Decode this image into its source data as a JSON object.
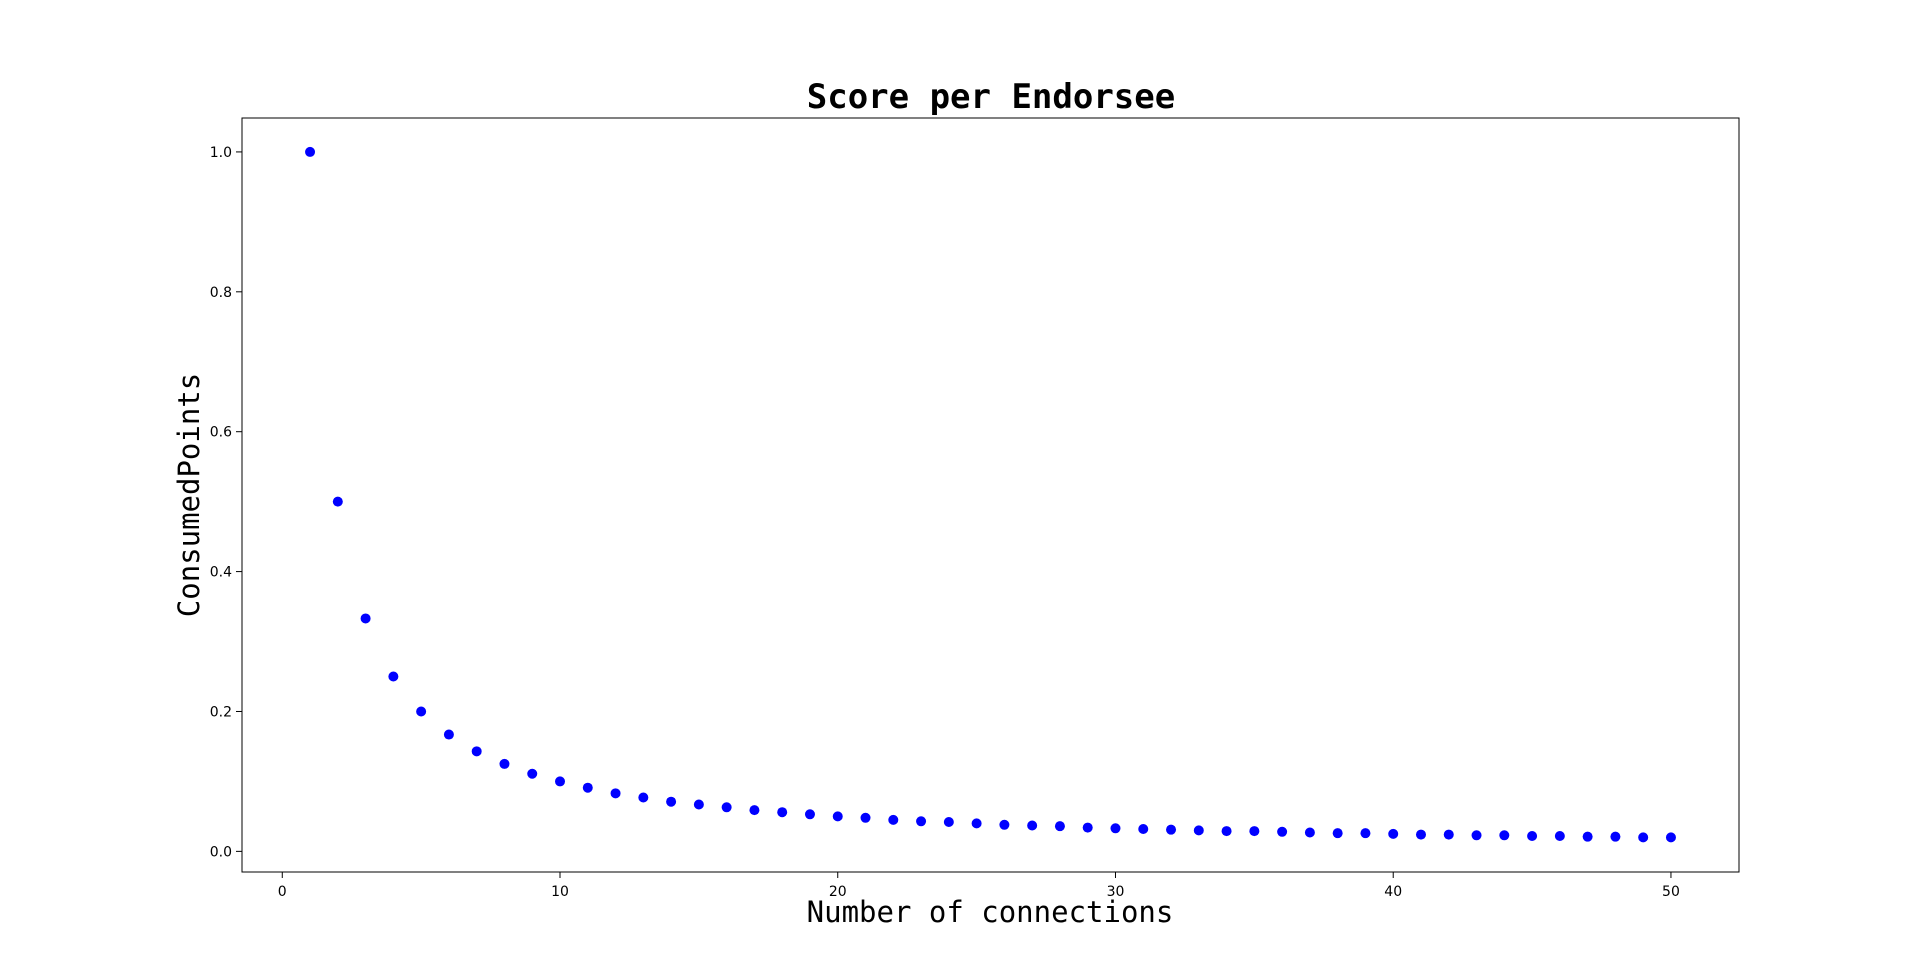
{
  "chart_data": {
    "type": "scatter",
    "title": "Score per Endorsee",
    "xlabel": "Number of connections",
    "ylabel": "ConsumedPoints",
    "xlim": [
      -1.45,
      52.45
    ],
    "ylim": [
      -0.0295,
      1.0485
    ],
    "xticks": [
      0,
      10,
      20,
      30,
      40,
      50
    ],
    "xtick_labels": [
      "0",
      "10",
      "20",
      "30",
      "40",
      "50"
    ],
    "yticks": [
      0.0,
      0.2,
      0.4,
      0.6,
      0.8,
      1.0
    ],
    "ytick_labels": [
      "0.0",
      "0.2",
      "0.4",
      "0.6",
      "0.8",
      "1.0"
    ],
    "grid": false,
    "marker_color": "#0000ff",
    "series": [
      {
        "x": [
          1,
          2,
          3,
          4,
          5,
          6,
          7,
          8,
          9,
          10,
          11,
          12,
          13,
          14,
          15,
          16,
          17,
          18,
          19,
          20,
          21,
          22,
          23,
          24,
          25,
          26,
          27,
          28,
          29,
          30,
          31,
          32,
          33,
          34,
          35,
          36,
          37,
          38,
          39,
          40,
          41,
          42,
          43,
          44,
          45,
          46,
          47,
          48,
          49,
          50
        ],
        "y": [
          1.0,
          0.5,
          0.333,
          0.25,
          0.2,
          0.167,
          0.143,
          0.125,
          0.111,
          0.1,
          0.091,
          0.083,
          0.077,
          0.071,
          0.067,
          0.063,
          0.059,
          0.056,
          0.053,
          0.05,
          0.048,
          0.045,
          0.043,
          0.042,
          0.04,
          0.038,
          0.037,
          0.036,
          0.034,
          0.033,
          0.032,
          0.031,
          0.03,
          0.029,
          0.029,
          0.028,
          0.027,
          0.026,
          0.026,
          0.025,
          0.024,
          0.024,
          0.023,
          0.023,
          0.022,
          0.022,
          0.021,
          0.021,
          0.02,
          0.02
        ]
      }
    ]
  }
}
